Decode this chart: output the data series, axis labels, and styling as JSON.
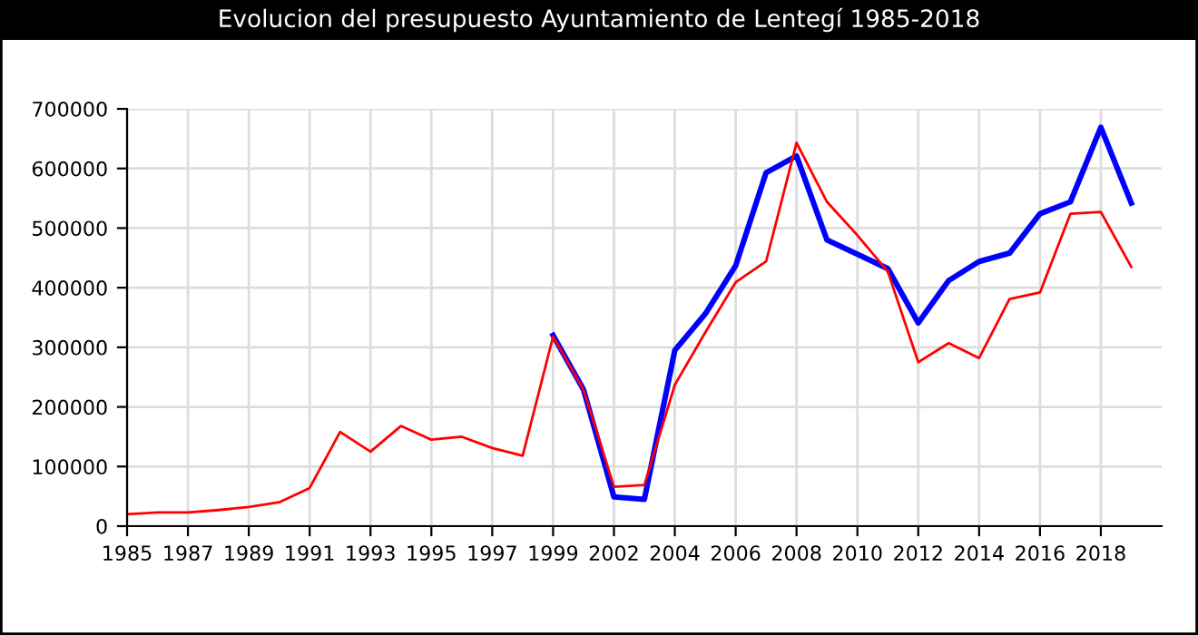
{
  "chart_data": {
    "type": "line",
    "title": "Evolucion del presupuesto Ayuntamiento de Lentegí 1985-2018",
    "categories": [
      "1985",
      null,
      "1987",
      null,
      "1989",
      null,
      "1991",
      null,
      "1993",
      null,
      "1995",
      null,
      "1997",
      null,
      "1999",
      null,
      "2002",
      null,
      "2004",
      null,
      "2006",
      null,
      "2008",
      null,
      "2010",
      null,
      "2012",
      null,
      "2014",
      null,
      "2016",
      null,
      "2018",
      null
    ],
    "series": [
      {
        "color": "#0000ff",
        "values": [
          null,
          null,
          null,
          null,
          null,
          null,
          null,
          null,
          null,
          null,
          null,
          null,
          null,
          null,
          320000,
          229000,
          49000,
          45000,
          295000,
          356000,
          437000,
          593000,
          621000,
          480000,
          456000,
          432000,
          341000,
          412000,
          444000,
          458000,
          524000,
          544000,
          669000,
          542000
        ]
      },
      {
        "color": "#ff0000",
        "values": [
          20000,
          23000,
          23000,
          27000,
          32000,
          40000,
          64000,
          158000,
          125000,
          168000,
          145000,
          150000,
          131000,
          118000,
          318000,
          229000,
          66000,
          69000,
          237000,
          325000,
          409000,
          444000,
          643000,
          544000,
          488000,
          427000,
          275000,
          307000,
          282000,
          381000,
          392000,
          524000,
          527000,
          435000
        ]
      }
    ],
    "ylim": [
      0,
      700000
    ],
    "yticks": [
      0,
      100000,
      200000,
      300000,
      400000,
      500000,
      600000,
      700000
    ],
    "grid": true,
    "marker": "none",
    "line_style": "solid"
  }
}
